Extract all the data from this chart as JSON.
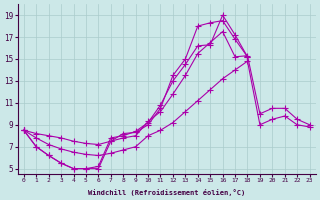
{
  "xlabel": "Windchill (Refroidissement éolien,°C)",
  "bg_color": "#cce8e8",
  "grid_color": "#aacccc",
  "line_color": "#aa00aa",
  "xlim": [
    -0.5,
    23.5
  ],
  "ylim": [
    4.5,
    20.0
  ],
  "xticks": [
    0,
    1,
    2,
    3,
    4,
    5,
    6,
    7,
    8,
    9,
    10,
    11,
    12,
    13,
    14,
    15,
    16,
    17,
    18,
    19,
    20,
    21,
    22,
    23
  ],
  "yticks": [
    5,
    7,
    9,
    11,
    13,
    15,
    17,
    19
  ],
  "series1_x": [
    0,
    1,
    2,
    3,
    4,
    5,
    6,
    7,
    8,
    9,
    10,
    11,
    12,
    13,
    14,
    15,
    16,
    17,
    18
  ],
  "series1_y": [
    8.5,
    7.0,
    6.2,
    5.5,
    5.0,
    5.0,
    5.0,
    7.5,
    8.2,
    8.3,
    9.0,
    10.5,
    13.5,
    15.0,
    18.0,
    18.3,
    18.5,
    16.8,
    15.2
  ],
  "series2_x": [
    0,
    1,
    2,
    3,
    4,
    5,
    6,
    7,
    8,
    9,
    10,
    11,
    12,
    13,
    14,
    15,
    16,
    17,
    18
  ],
  "series2_y": [
    8.5,
    7.0,
    6.2,
    5.5,
    5.0,
    5.0,
    5.2,
    7.8,
    8.0,
    8.4,
    9.2,
    10.8,
    13.0,
    14.5,
    16.2,
    16.3,
    19.0,
    17.2,
    15.2
  ],
  "series3_x": [
    0,
    1,
    2,
    3,
    4,
    5,
    6,
    7,
    8,
    9,
    10,
    11,
    12,
    13,
    14,
    15,
    16,
    17,
    18,
    19,
    20,
    21,
    22,
    23
  ],
  "series3_y": [
    8.5,
    8.2,
    8.0,
    7.8,
    7.5,
    7.3,
    7.2,
    7.5,
    7.8,
    8.0,
    9.3,
    10.2,
    11.8,
    13.5,
    15.5,
    16.5,
    17.5,
    15.2,
    15.3,
    10.0,
    10.5,
    10.5,
    9.5,
    9.0
  ],
  "series4_x": [
    0,
    1,
    2,
    3,
    4,
    5,
    6,
    7,
    8,
    9,
    10,
    11,
    12,
    13,
    14,
    15,
    16,
    17,
    18,
    19,
    20,
    21,
    22,
    23
  ],
  "series4_y": [
    8.5,
    7.8,
    7.2,
    6.8,
    6.5,
    6.3,
    6.2,
    6.4,
    6.7,
    7.0,
    8.0,
    8.5,
    9.2,
    10.2,
    11.2,
    12.2,
    13.2,
    14.0,
    14.8,
    9.0,
    9.5,
    9.8,
    9.0,
    8.8
  ]
}
